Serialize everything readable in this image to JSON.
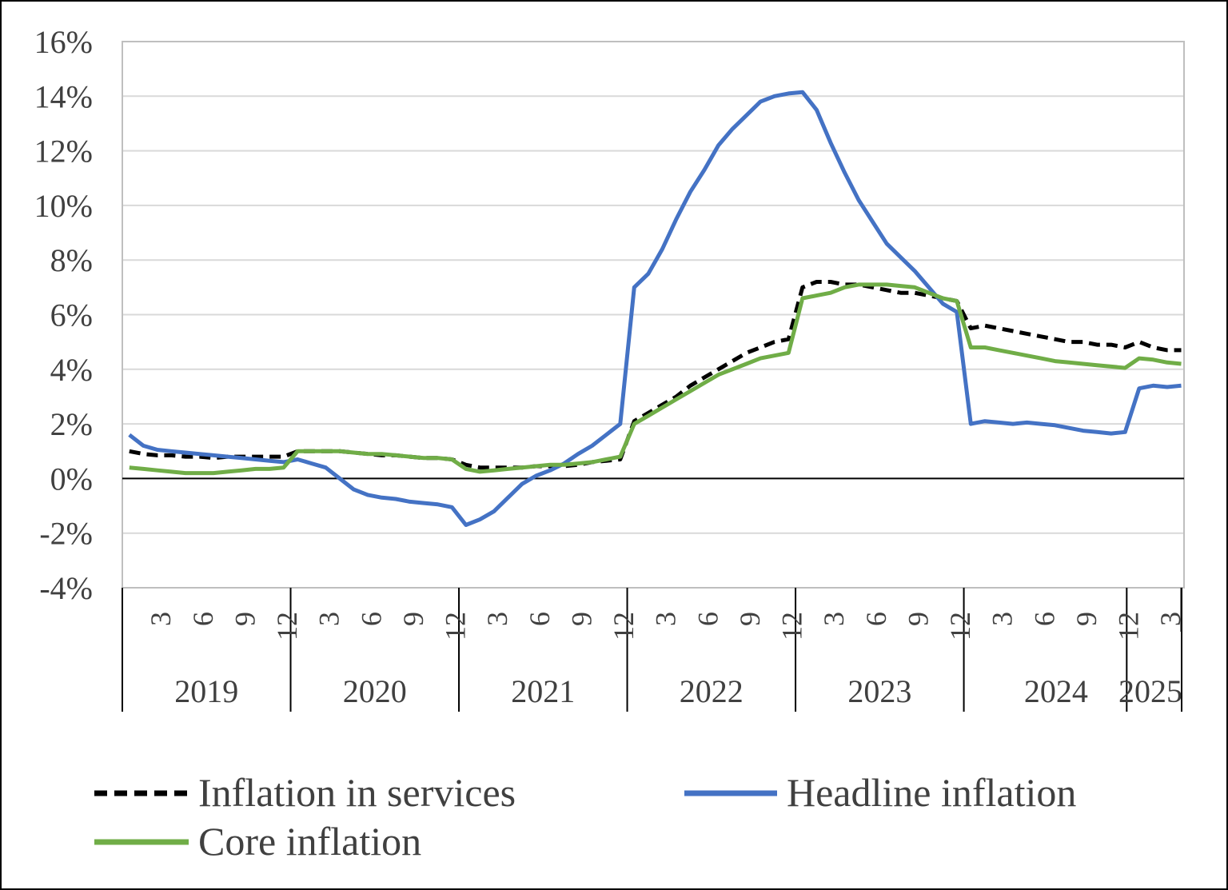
{
  "chart_data": {
    "type": "line",
    "title": "",
    "xlabel": "",
    "ylabel": "",
    "ylim": [
      -4,
      16
    ],
    "y_ticks": [
      "16%",
      "14%",
      "12%",
      "10%",
      "8%",
      "6%",
      "4%",
      "2%",
      "0%",
      "-2%",
      "-4%"
    ],
    "y_tick_values": [
      16,
      14,
      12,
      10,
      8,
      6,
      4,
      2,
      0,
      -2,
      -4
    ],
    "gridlines": true,
    "x_start": "2019-01",
    "x_end": "2025-04",
    "x_month_ticks": [
      "3",
      "6",
      "9",
      "12"
    ],
    "years": [
      "2019",
      "2020",
      "2021",
      "2022",
      "2023",
      "2024",
      "2025"
    ],
    "legend_position": "bottom",
    "series": [
      {
        "name": "Inflation in services",
        "color": "#000000",
        "style": "dashed",
        "values": [
          1.0,
          0.9,
          0.85,
          0.85,
          0.8,
          0.8,
          0.75,
          0.8,
          0.8,
          0.8,
          0.8,
          0.8,
          1.0,
          1.0,
          1.0,
          1.0,
          0.95,
          0.9,
          0.85,
          0.85,
          0.8,
          0.75,
          0.75,
          0.7,
          0.5,
          0.4,
          0.4,
          0.4,
          0.4,
          0.45,
          0.45,
          0.45,
          0.5,
          0.6,
          0.65,
          0.7,
          2.1,
          2.4,
          2.7,
          3.0,
          3.4,
          3.7,
          4.0,
          4.3,
          4.6,
          4.8,
          5.0,
          5.1,
          7.0,
          7.2,
          7.2,
          7.1,
          7.1,
          7.0,
          6.9,
          6.8,
          6.8,
          6.7,
          6.6,
          6.5,
          5.5,
          5.6,
          5.5,
          5.4,
          5.3,
          5.2,
          5.1,
          5.0,
          5.0,
          4.9,
          4.9,
          4.8,
          5.0,
          4.8,
          4.7,
          4.7
        ]
      },
      {
        "name": "Headline inflation",
        "color": "#4472C4",
        "style": "solid",
        "values": [
          1.6,
          1.2,
          1.05,
          1.0,
          0.95,
          0.9,
          0.85,
          0.8,
          0.75,
          0.7,
          0.65,
          0.6,
          0.7,
          0.55,
          0.4,
          0.0,
          -0.4,
          -0.6,
          -0.7,
          -0.75,
          -0.85,
          -0.9,
          -0.95,
          -1.05,
          -1.7,
          -1.5,
          -1.2,
          -0.7,
          -0.2,
          0.1,
          0.3,
          0.55,
          0.9,
          1.2,
          1.6,
          2.0,
          7.0,
          7.5,
          8.4,
          9.5,
          10.5,
          11.3,
          12.2,
          12.8,
          13.3,
          13.8,
          14.0,
          14.1,
          14.15,
          13.5,
          12.3,
          11.2,
          10.2,
          9.4,
          8.6,
          8.1,
          7.6,
          7.0,
          6.4,
          6.1,
          2.0,
          2.1,
          2.05,
          2.0,
          2.05,
          2.0,
          1.95,
          1.85,
          1.75,
          1.7,
          1.65,
          1.7,
          3.3,
          3.4,
          3.35,
          3.4
        ]
      },
      {
        "name": "Core inflation",
        "color": "#70AD47",
        "style": "solid",
        "values": [
          0.4,
          0.35,
          0.3,
          0.25,
          0.2,
          0.2,
          0.2,
          0.25,
          0.3,
          0.35,
          0.35,
          0.4,
          1.0,
          1.0,
          1.0,
          1.0,
          0.95,
          0.9,
          0.9,
          0.85,
          0.8,
          0.75,
          0.75,
          0.7,
          0.35,
          0.25,
          0.3,
          0.35,
          0.4,
          0.45,
          0.5,
          0.5,
          0.55,
          0.6,
          0.7,
          0.8,
          2.0,
          2.3,
          2.6,
          2.9,
          3.2,
          3.5,
          3.8,
          4.0,
          4.2,
          4.4,
          4.5,
          4.6,
          6.6,
          6.7,
          6.8,
          7.0,
          7.1,
          7.1,
          7.1,
          7.05,
          7.0,
          6.8,
          6.6,
          6.5,
          4.8,
          4.8,
          4.7,
          4.6,
          4.5,
          4.4,
          4.3,
          4.25,
          4.2,
          4.15,
          4.1,
          4.05,
          4.4,
          4.35,
          4.25,
          4.2
        ]
      }
    ]
  }
}
